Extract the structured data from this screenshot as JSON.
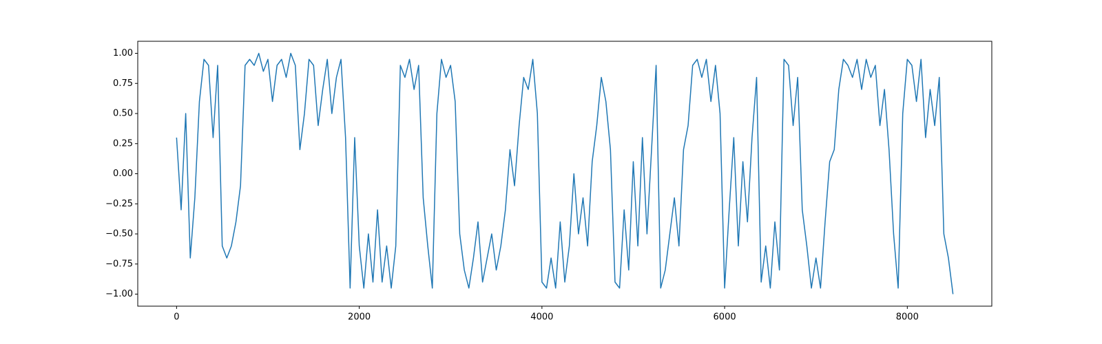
{
  "chart_data": {
    "type": "line",
    "x": [
      0,
      50,
      100,
      150,
      200,
      250,
      300,
      350,
      400,
      450,
      500,
      550,
      600,
      650,
      700,
      750,
      800,
      850,
      900,
      950,
      1000,
      1050,
      1100,
      1150,
      1200,
      1250,
      1300,
      1350,
      1400,
      1450,
      1500,
      1550,
      1600,
      1650,
      1700,
      1750,
      1800,
      1850,
      1900,
      1950,
      2000,
      2050,
      2100,
      2150,
      2200,
      2250,
      2300,
      2350,
      2400,
      2450,
      2500,
      2550,
      2600,
      2650,
      2700,
      2750,
      2800,
      2850,
      2900,
      2950,
      3000,
      3050,
      3100,
      3150,
      3200,
      3250,
      3300,
      3350,
      3400,
      3450,
      3500,
      3550,
      3600,
      3650,
      3700,
      3750,
      3800,
      3850,
      3900,
      3950,
      4000,
      4050,
      4100,
      4150,
      4200,
      4250,
      4300,
      4350,
      4400,
      4450,
      4500,
      4550,
      4600,
      4650,
      4700,
      4750,
      4800,
      4850,
      4900,
      4950,
      5000,
      5050,
      5100,
      5150,
      5200,
      5250,
      5300,
      5350,
      5400,
      5450,
      5500,
      5550,
      5600,
      5650,
      5700,
      5750,
      5800,
      5850,
      5900,
      5950,
      6000,
      6050,
      6100,
      6150,
      6200,
      6250,
      6300,
      6350,
      6400,
      6450,
      6500,
      6550,
      6600,
      6650,
      6700,
      6750,
      6800,
      6850,
      6900,
      6950,
      7000,
      7050,
      7100,
      7150,
      7200,
      7250,
      7300,
      7350,
      7400,
      7450,
      7500,
      7550,
      7600,
      7650,
      7700,
      7750,
      7800,
      7850,
      7900,
      7950,
      8000,
      8050,
      8100,
      8150,
      8200,
      8250,
      8300,
      8350,
      8400,
      8450,
      8500
    ],
    "series": [
      {
        "color": "#1f77b4",
        "values": [
          0.3,
          -0.3,
          0.5,
          -0.7,
          -0.2,
          0.6,
          0.95,
          0.9,
          0.3,
          0.9,
          -0.6,
          -0.7,
          -0.6,
          -0.4,
          -0.1,
          0.9,
          0.95,
          0.9,
          1.0,
          0.85,
          0.95,
          0.6,
          0.9,
          0.95,
          0.8,
          1.0,
          0.9,
          0.2,
          0.5,
          0.95,
          0.9,
          0.4,
          0.7,
          0.95,
          0.5,
          0.8,
          0.95,
          0.3,
          -0.95,
          0.3,
          -0.6,
          -0.95,
          -0.5,
          -0.9,
          -0.3,
          -0.9,
          -0.6,
          -0.95,
          -0.6,
          0.9,
          0.8,
          0.95,
          0.7,
          0.9,
          -0.2,
          -0.6,
          -0.95,
          0.5,
          0.95,
          0.8,
          0.9,
          0.6,
          -0.5,
          -0.8,
          -0.95,
          -0.7,
          -0.4,
          -0.9,
          -0.7,
          -0.5,
          -0.8,
          -0.6,
          -0.3,
          0.2,
          -0.1,
          0.4,
          0.8,
          0.7,
          0.95,
          0.5,
          -0.9,
          -0.95,
          -0.7,
          -0.95,
          -0.4,
          -0.9,
          -0.6,
          0.0,
          -0.5,
          -0.2,
          -0.6,
          0.1,
          0.4,
          0.8,
          0.6,
          0.2,
          -0.9,
          -0.95,
          -0.3,
          -0.8,
          0.1,
          -0.6,
          0.3,
          -0.5,
          0.2,
          0.9,
          -0.95,
          -0.8,
          -0.5,
          -0.2,
          -0.6,
          0.2,
          0.4,
          0.9,
          0.95,
          0.8,
          0.95,
          0.6,
          0.9,
          0.5,
          -0.95,
          -0.3,
          0.3,
          -0.6,
          0.1,
          -0.4,
          0.3,
          0.8,
          -0.9,
          -0.6,
          -0.95,
          -0.4,
          -0.8,
          0.95,
          0.9,
          0.4,
          0.8,
          -0.3,
          -0.6,
          -0.95,
          -0.7,
          -0.95,
          -0.4,
          0.1,
          0.2,
          0.7,
          0.95,
          0.9,
          0.8,
          0.95,
          0.7,
          0.95,
          0.8,
          0.9,
          0.4,
          0.7,
          0.2,
          -0.5,
          -0.95,
          0.5,
          0.95,
          0.9,
          0.6,
          0.95,
          0.3,
          0.7,
          0.4,
          0.8,
          -0.5,
          -0.7,
          -1.0
        ]
      }
    ],
    "xlim": [
      -425,
      8925
    ],
    "xticks": [
      0,
      2000,
      4000,
      6000,
      8000
    ],
    "ylim": [
      -1.1,
      1.1
    ],
    "yticks": [
      {
        "value": -1.0,
        "label": "−1.00"
      },
      {
        "value": -0.75,
        "label": "−0.75"
      },
      {
        "value": -0.5,
        "label": "−0.50"
      },
      {
        "value": -0.25,
        "label": "−0.25"
      },
      {
        "value": 0.0,
        "label": "0.00"
      },
      {
        "value": 0.25,
        "label": "0.25"
      },
      {
        "value": 0.5,
        "label": "0.50"
      },
      {
        "value": 0.75,
        "label": "0.75"
      },
      {
        "value": 1.0,
        "label": "1.00"
      }
    ]
  }
}
